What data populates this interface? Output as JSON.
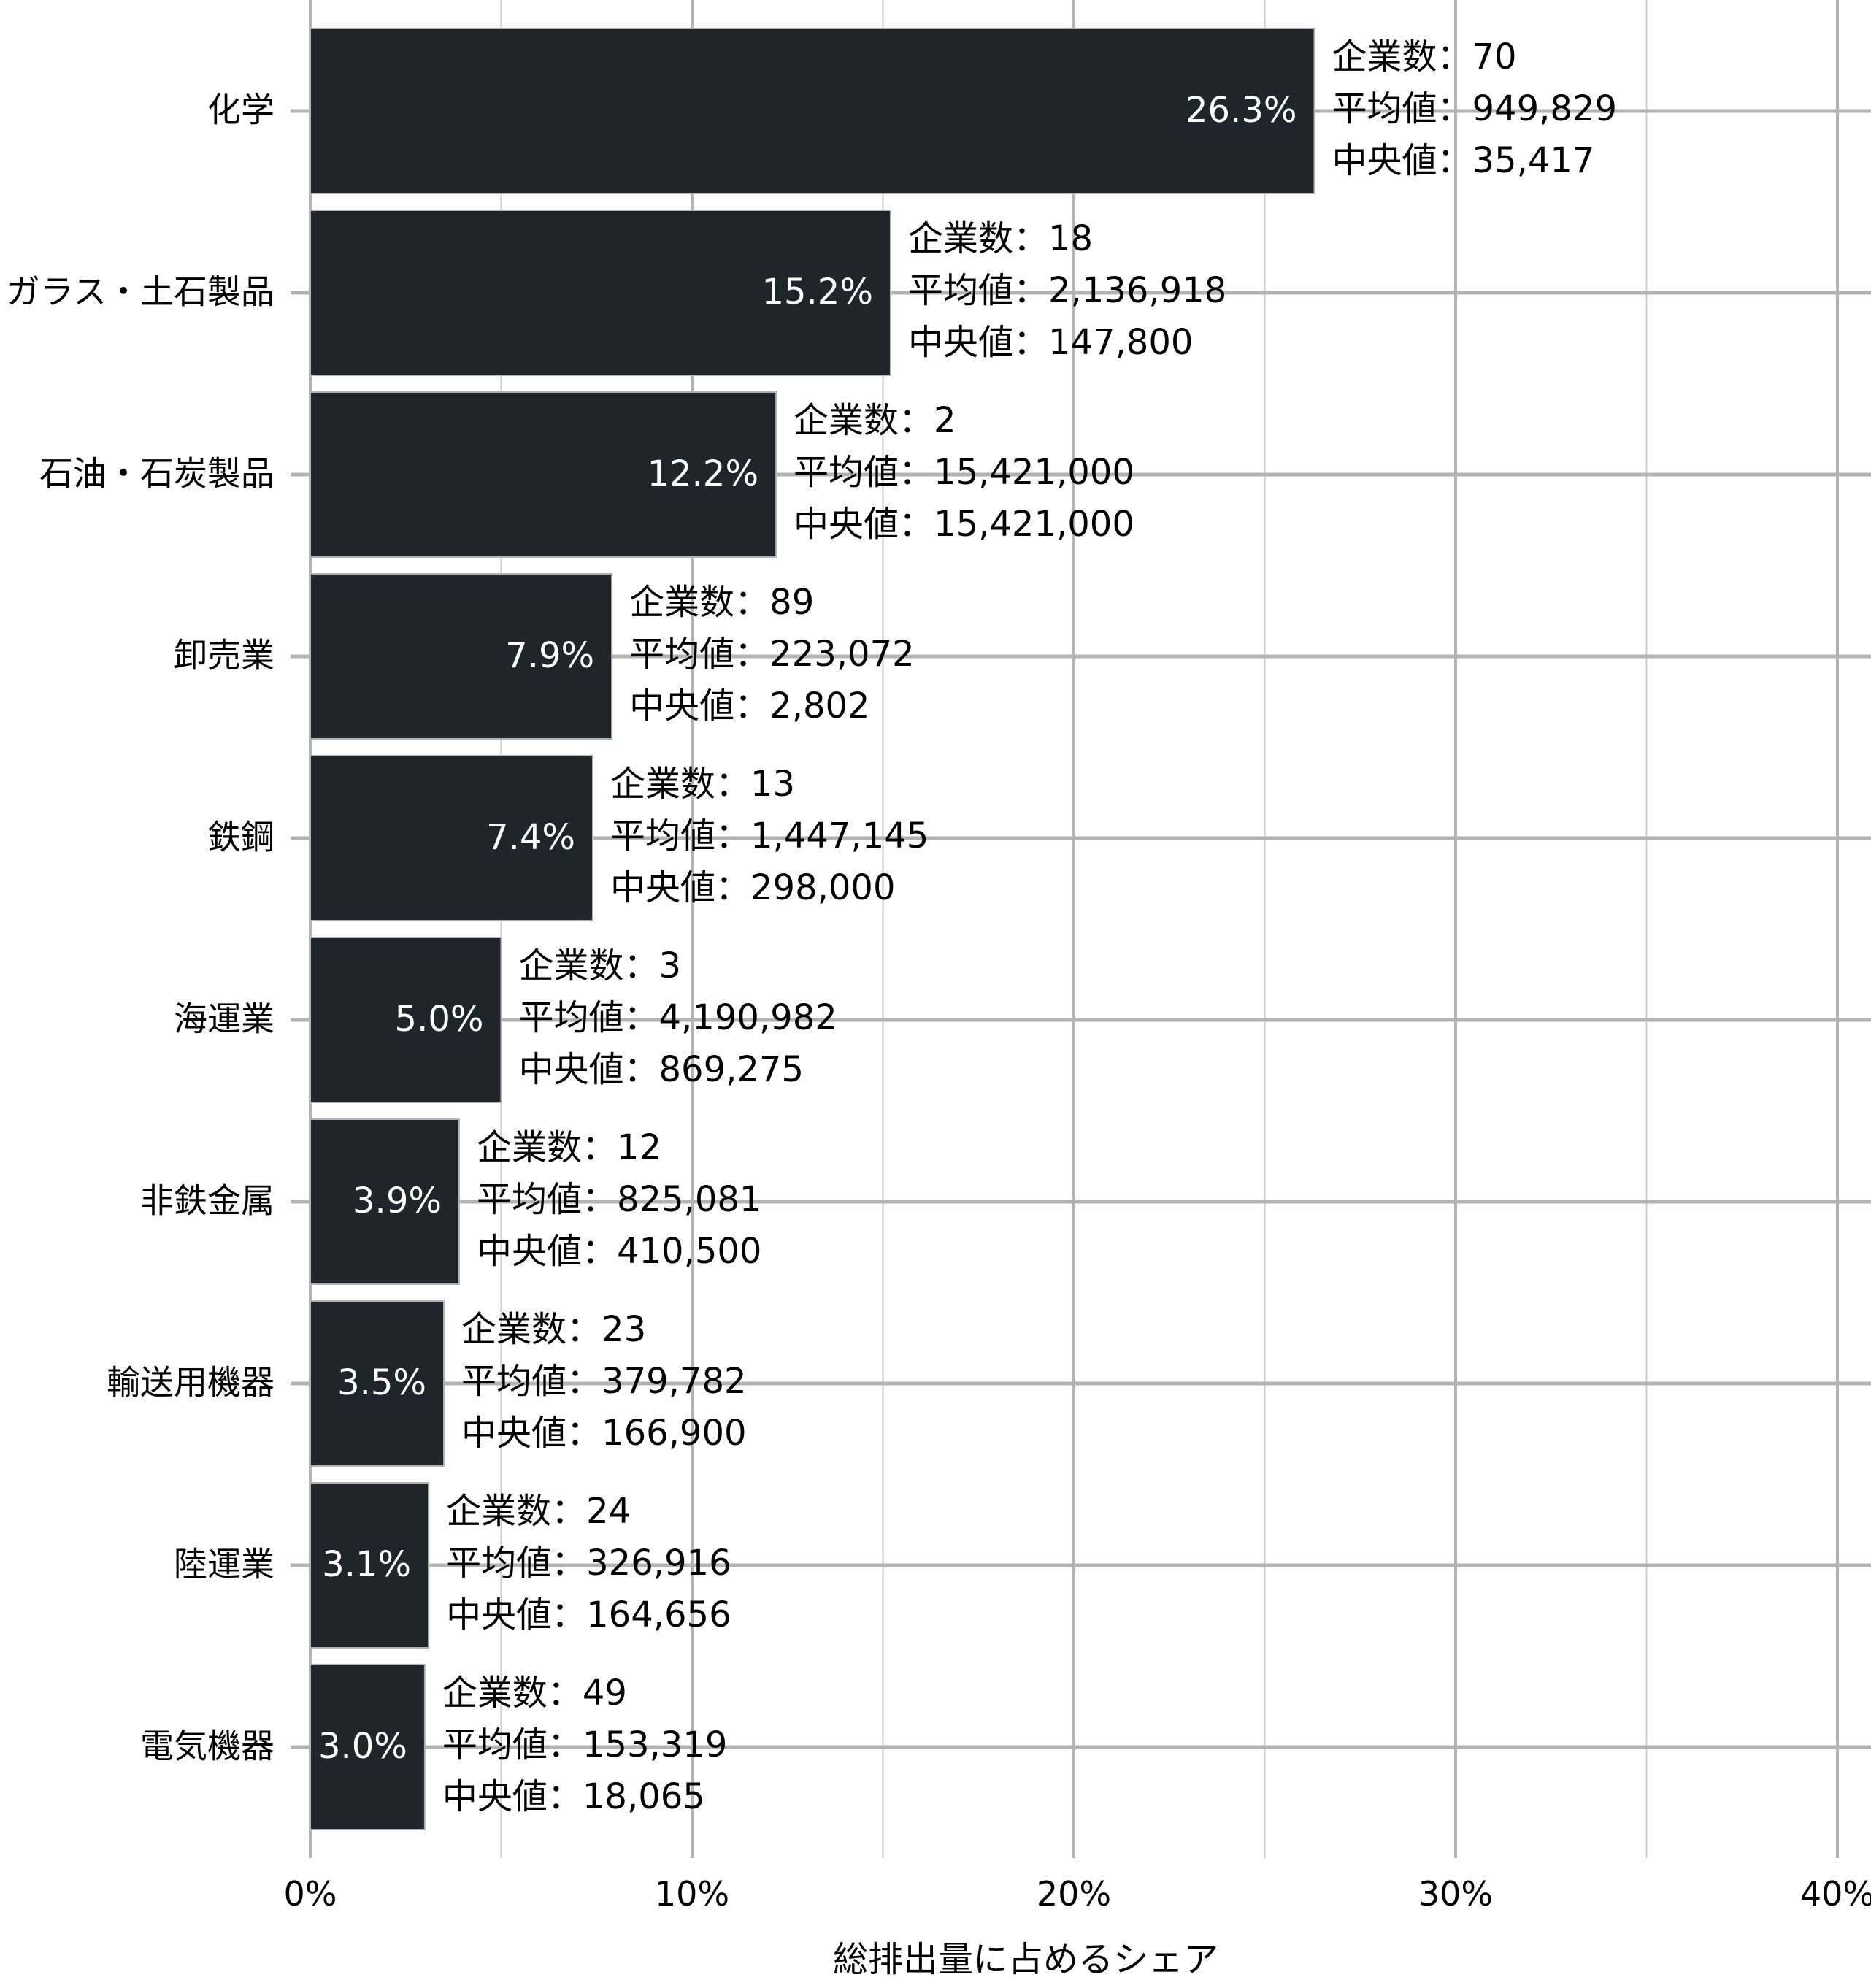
{
  "chart_data": {
    "type": "bar",
    "orientation": "horizontal",
    "xlabel": "総排出量に占めるシェア",
    "ylabel": "",
    "xlim": [
      0,
      40
    ],
    "x_ticks": [
      "0%",
      "10%",
      "20%",
      "30%",
      "40%"
    ],
    "grid": true,
    "legend": "none",
    "bar_color": "#1f2629",
    "categories": [
      "化学",
      "ガラス・土石製品",
      "石油・石炭製品",
      "卸売業",
      "鉄鋼",
      "海運業",
      "非鉄金属",
      "輸送用機器",
      "陸運業",
      "電気機器"
    ],
    "values": [
      26.3,
      15.2,
      12.2,
      7.9,
      7.4,
      5.0,
      3.9,
      3.5,
      3.1,
      3.0
    ],
    "value_labels": [
      "26.3%",
      "15.2%",
      "12.2%",
      "7.9%",
      "7.4%",
      "5.0%",
      "3.9%",
      "3.5%",
      "3.1%",
      "3.0%"
    ],
    "annotations": [
      [
        "企業数：70",
        "平均値：949,829",
        "中央値：35,417"
      ],
      [
        "企業数：18",
        "平均値：2,136,918",
        "中央値：147,800"
      ],
      [
        "企業数：2",
        "平均値：15,421,000",
        "中央値：15,421,000"
      ],
      [
        "企業数：89",
        "平均値：223,072",
        "中央値：2,802"
      ],
      [
        "企業数：13",
        "平均値：1,447,145",
        "中央値：298,000"
      ],
      [
        "企業数：3",
        "平均値：4,190,982",
        "中央値：869,275"
      ],
      [
        "企業数：12",
        "平均値：825,081",
        "中央値：410,500"
      ],
      [
        "企業数：23",
        "平均値：379,782",
        "中央値：166,900"
      ],
      [
        "企業数：24",
        "平均値：326,916",
        "中央値：164,656"
      ],
      [
        "企業数：49",
        "平均値：153,319",
        "中央値：18,065"
      ]
    ]
  }
}
